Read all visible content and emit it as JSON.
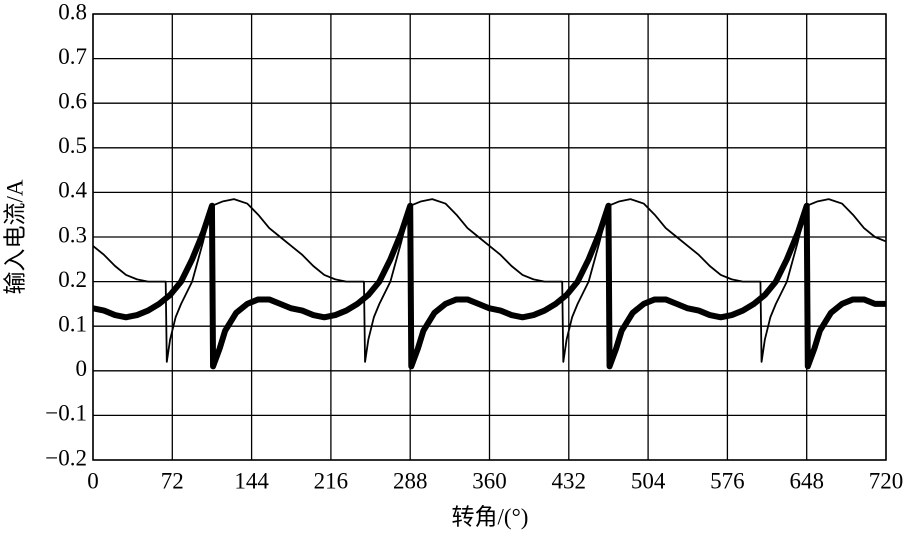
{
  "chart_data": {
    "type": "line",
    "xlabel": "转角/(°)",
    "ylabel": "输入电流/A",
    "xlim": [
      0,
      720
    ],
    "xticks": [
      0,
      72,
      144,
      216,
      288,
      360,
      432,
      504,
      576,
      648,
      720
    ],
    "ylim": [
      -0.2,
      0.8
    ],
    "yticks": [
      {
        "value": -0.2,
        "label": "−0.2"
      },
      {
        "value": -0.1,
        "label": "−0.1"
      },
      0,
      0.1,
      0.2,
      0.3,
      0.4,
      0.5,
      0.6,
      0.7,
      0.8
    ],
    "grid": true,
    "series": [
      {
        "color": "#000000",
        "width": 1.8,
        "x": [
          0,
          10,
          20,
          30,
          40,
          50,
          66,
          67,
          70,
          75,
          80,
          90,
          100,
          108,
          118,
          128,
          140,
          150,
          160,
          170,
          180,
          190,
          200,
          210,
          220,
          230,
          246,
          247,
          250,
          255,
          260,
          270,
          280,
          288,
          298,
          308,
          320,
          330,
          340,
          350,
          360,
          370,
          380,
          390,
          400,
          410,
          426,
          427,
          430,
          435,
          440,
          450,
          460,
          468,
          478,
          488,
          500,
          510,
          520,
          530,
          540,
          550,
          560,
          570,
          580,
          590,
          606,
          607,
          610,
          615,
          620,
          630,
          640,
          648,
          658,
          668,
          680,
          690,
          700,
          710,
          720
        ],
        "values": [
          0.28,
          0.26,
          0.235,
          0.215,
          0.205,
          0.2,
          0.2,
          0.02,
          0.07,
          0.12,
          0.15,
          0.2,
          0.29,
          0.37,
          0.38,
          0.385,
          0.375,
          0.35,
          0.32,
          0.3,
          0.28,
          0.26,
          0.235,
          0.215,
          0.205,
          0.2,
          0.2,
          0.02,
          0.07,
          0.12,
          0.15,
          0.2,
          0.29,
          0.37,
          0.38,
          0.385,
          0.375,
          0.35,
          0.32,
          0.3,
          0.28,
          0.26,
          0.235,
          0.215,
          0.205,
          0.2,
          0.2,
          0.02,
          0.07,
          0.12,
          0.15,
          0.2,
          0.29,
          0.37,
          0.38,
          0.385,
          0.375,
          0.35,
          0.32,
          0.3,
          0.28,
          0.26,
          0.235,
          0.215,
          0.205,
          0.2,
          0.2,
          0.02,
          0.07,
          0.12,
          0.15,
          0.2,
          0.29,
          0.37,
          0.38,
          0.385,
          0.375,
          0.35,
          0.32,
          0.3,
          0.29
        ]
      },
      {
        "color": "#000000",
        "width": 6,
        "x": [
          0,
          10,
          20,
          30,
          40,
          50,
          60,
          70,
          80,
          90,
          100,
          108,
          109,
          115,
          120,
          130,
          140,
          150,
          160,
          170,
          180,
          190,
          200,
          210,
          220,
          230,
          240,
          250,
          260,
          270,
          280,
          288,
          289,
          295,
          300,
          310,
          320,
          330,
          340,
          350,
          360,
          370,
          380,
          390,
          400,
          410,
          420,
          430,
          440,
          450,
          460,
          468,
          469,
          475,
          480,
          490,
          500,
          510,
          520,
          530,
          540,
          550,
          560,
          570,
          580,
          590,
          600,
          610,
          620,
          630,
          640,
          648,
          649,
          655,
          660,
          670,
          680,
          690,
          700,
          710,
          720
        ],
        "values": [
          0.14,
          0.135,
          0.125,
          0.12,
          0.125,
          0.135,
          0.15,
          0.17,
          0.2,
          0.25,
          0.31,
          0.37,
          0.01,
          0.05,
          0.09,
          0.13,
          0.15,
          0.16,
          0.16,
          0.15,
          0.14,
          0.135,
          0.125,
          0.12,
          0.125,
          0.135,
          0.15,
          0.17,
          0.2,
          0.25,
          0.31,
          0.37,
          0.01,
          0.05,
          0.09,
          0.13,
          0.15,
          0.16,
          0.16,
          0.15,
          0.14,
          0.135,
          0.125,
          0.12,
          0.125,
          0.135,
          0.15,
          0.17,
          0.2,
          0.25,
          0.31,
          0.37,
          0.01,
          0.05,
          0.09,
          0.13,
          0.15,
          0.16,
          0.16,
          0.15,
          0.14,
          0.135,
          0.125,
          0.12,
          0.125,
          0.135,
          0.15,
          0.17,
          0.2,
          0.25,
          0.31,
          0.37,
          0.01,
          0.05,
          0.09,
          0.13,
          0.15,
          0.16,
          0.16,
          0.15,
          0.15
        ]
      }
    ]
  }
}
